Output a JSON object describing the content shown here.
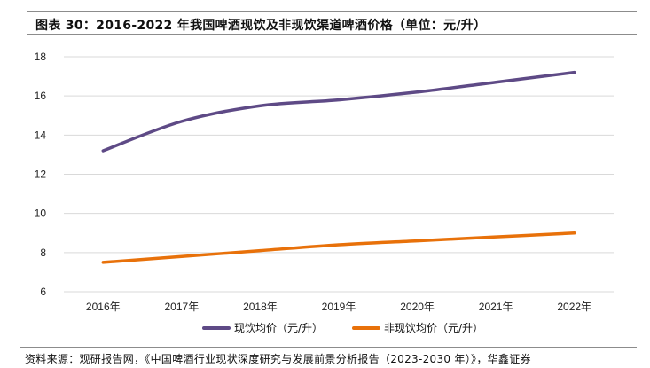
{
  "header": {
    "title": "图表 30：2016-2022 年我国啤酒现饮及非现饮渠道啤酒价格（单位：元/升）"
  },
  "chart_data": {
    "type": "line",
    "title": "2016-2022 年我国啤酒现饮及非现饮渠道啤酒价格（单位：元/升）",
    "xlabel": "",
    "ylabel": "",
    "categories": [
      "2016年",
      "2017年",
      "2018年",
      "2019年",
      "2020年",
      "2021年",
      "2022年"
    ],
    "ylim": [
      6,
      18
    ],
    "yticks": [
      6,
      8,
      10,
      12,
      14,
      16,
      18
    ],
    "grid": true,
    "legend_position": "bottom",
    "series": [
      {
        "name": "现饮均价（元/升）",
        "color": "#5e4a86",
        "smooth": true,
        "values": [
          13.2,
          14.7,
          15.5,
          15.8,
          16.2,
          16.7,
          17.2
        ]
      },
      {
        "name": "非现饮均价（元/升）",
        "color": "#e8710a",
        "smooth": true,
        "values": [
          7.5,
          7.8,
          8.1,
          8.4,
          8.6,
          8.8,
          9.0
        ]
      }
    ]
  },
  "footer": {
    "source": "资料来源：观研报告网，《中国啤酒行业现状深度研究与发展前景分析报告（2023-2030 年）》，华鑫证券"
  }
}
